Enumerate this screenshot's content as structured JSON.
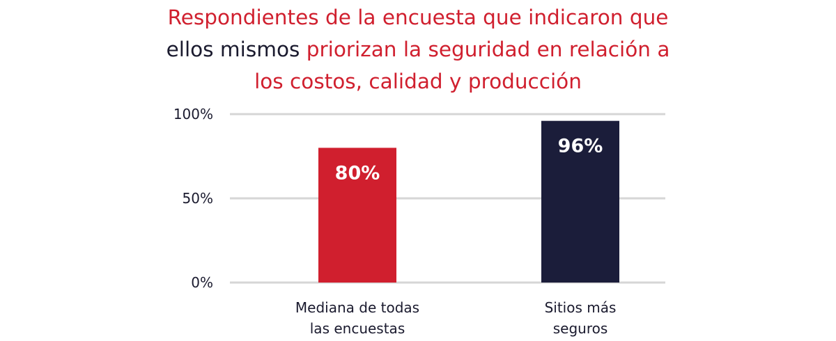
{
  "title": {
    "line1": "Respondientes de la encuesta que indicaron que",
    "line2_dark": "ellos mismos",
    "line2_red": "priorizan la seguridad en relación a",
    "line3": "los costos, calidad y producción"
  },
  "colors": {
    "title_red": "#d01f2e",
    "text_dark": "#1a1a2e",
    "grid": "#d6d6d6"
  },
  "chart_data": {
    "type": "bar",
    "categories": [
      [
        "Mediana de todas",
        "las encuestas"
      ],
      [
        "Sitios más",
        "seguros"
      ]
    ],
    "values": [
      80,
      96
    ],
    "data_labels": [
      "80%",
      "96%"
    ],
    "bar_colors": [
      "#d01f2e",
      "#1b1d3a"
    ],
    "y_ticks": [
      {
        "value": 0,
        "label": "0%"
      },
      {
        "value": 50,
        "label": "50%"
      },
      {
        "value": 100,
        "label": "100%"
      }
    ],
    "ylim": [
      0,
      100
    ],
    "grid": true,
    "legend": "none"
  }
}
